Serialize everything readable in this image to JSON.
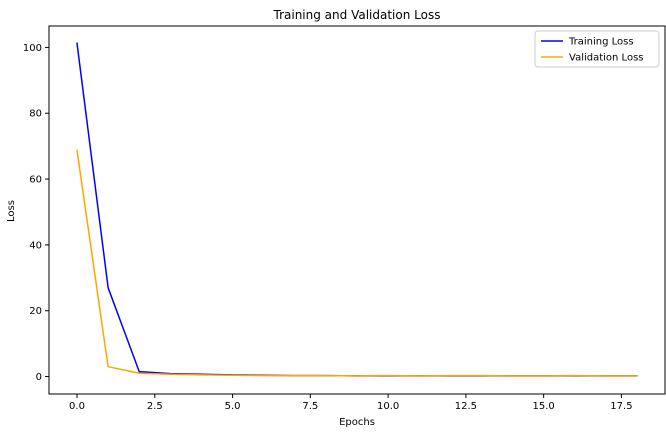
{
  "chart_data": {
    "type": "line",
    "title": "Training and Validation Loss",
    "xlabel": "Epochs",
    "ylabel": "Loss",
    "xlim": [
      -0.9,
      18.9
    ],
    "ylim": [
      -5.3,
      106.5
    ],
    "xticks": [
      0,
      2.5,
      5,
      7.5,
      10,
      12.5,
      15,
      17.5
    ],
    "xtick_labels": [
      "0.0",
      "2.5",
      "5.0",
      "7.5",
      "10.0",
      "12.5",
      "15.0",
      "17.5"
    ],
    "yticks": [
      0,
      20,
      40,
      60,
      80,
      100
    ],
    "ytick_labels": [
      "0",
      "20",
      "40",
      "60",
      "80",
      "100"
    ],
    "grid": false,
    "legend": "top-right",
    "x": [
      0,
      1,
      2,
      3,
      4,
      5,
      6,
      7,
      8,
      9,
      10,
      11,
      12,
      13,
      14,
      15,
      16,
      17,
      18
    ],
    "series": [
      {
        "name": "Training Loss",
        "color": "#0000ff",
        "values": [
          101.3,
          27.0,
          1.5,
          0.9,
          0.7,
          0.5,
          0.4,
          0.3,
          0.3,
          0.2,
          0.2,
          0.2,
          0.2,
          0.2,
          0.2,
          0.2,
          0.2,
          0.2,
          0.2
        ]
      },
      {
        "name": "Validation Loss",
        "color": "#ffa500",
        "values": [
          68.8,
          3.0,
          1.0,
          0.7,
          0.5,
          0.4,
          0.3,
          0.3,
          0.3,
          0.2,
          0.3,
          0.2,
          0.3,
          0.3,
          0.2,
          0.2,
          0.3,
          0.2,
          0.2
        ]
      }
    ]
  }
}
